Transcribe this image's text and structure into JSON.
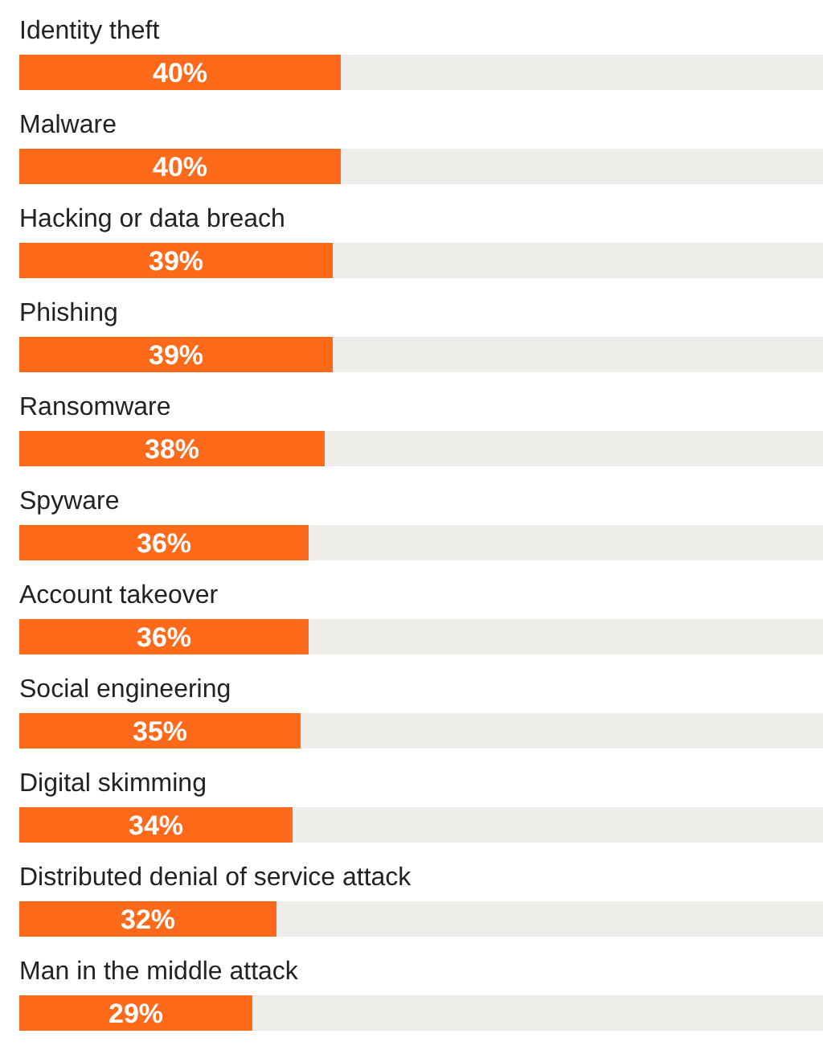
{
  "chart_data": {
    "type": "bar",
    "orientation": "horizontal",
    "categories": [
      "Identity theft",
      "Malware",
      "Hacking or data breach",
      "Phishing",
      "Ransomware",
      "Spyware",
      "Account takeover",
      "Social engineering",
      "Digital skimming",
      "Distributed denial of service attack",
      "Man in the middle attack"
    ],
    "values": [
      40,
      40,
      39,
      39,
      38,
      36,
      36,
      35,
      34,
      32,
      29
    ],
    "value_labels": [
      "40%",
      "40%",
      "39%",
      "39%",
      "38%",
      "36%",
      "36%",
      "35%",
      "34%",
      "32%",
      "29%"
    ],
    "color": "#ff6a1a",
    "xlim": [
      0,
      100
    ]
  }
}
